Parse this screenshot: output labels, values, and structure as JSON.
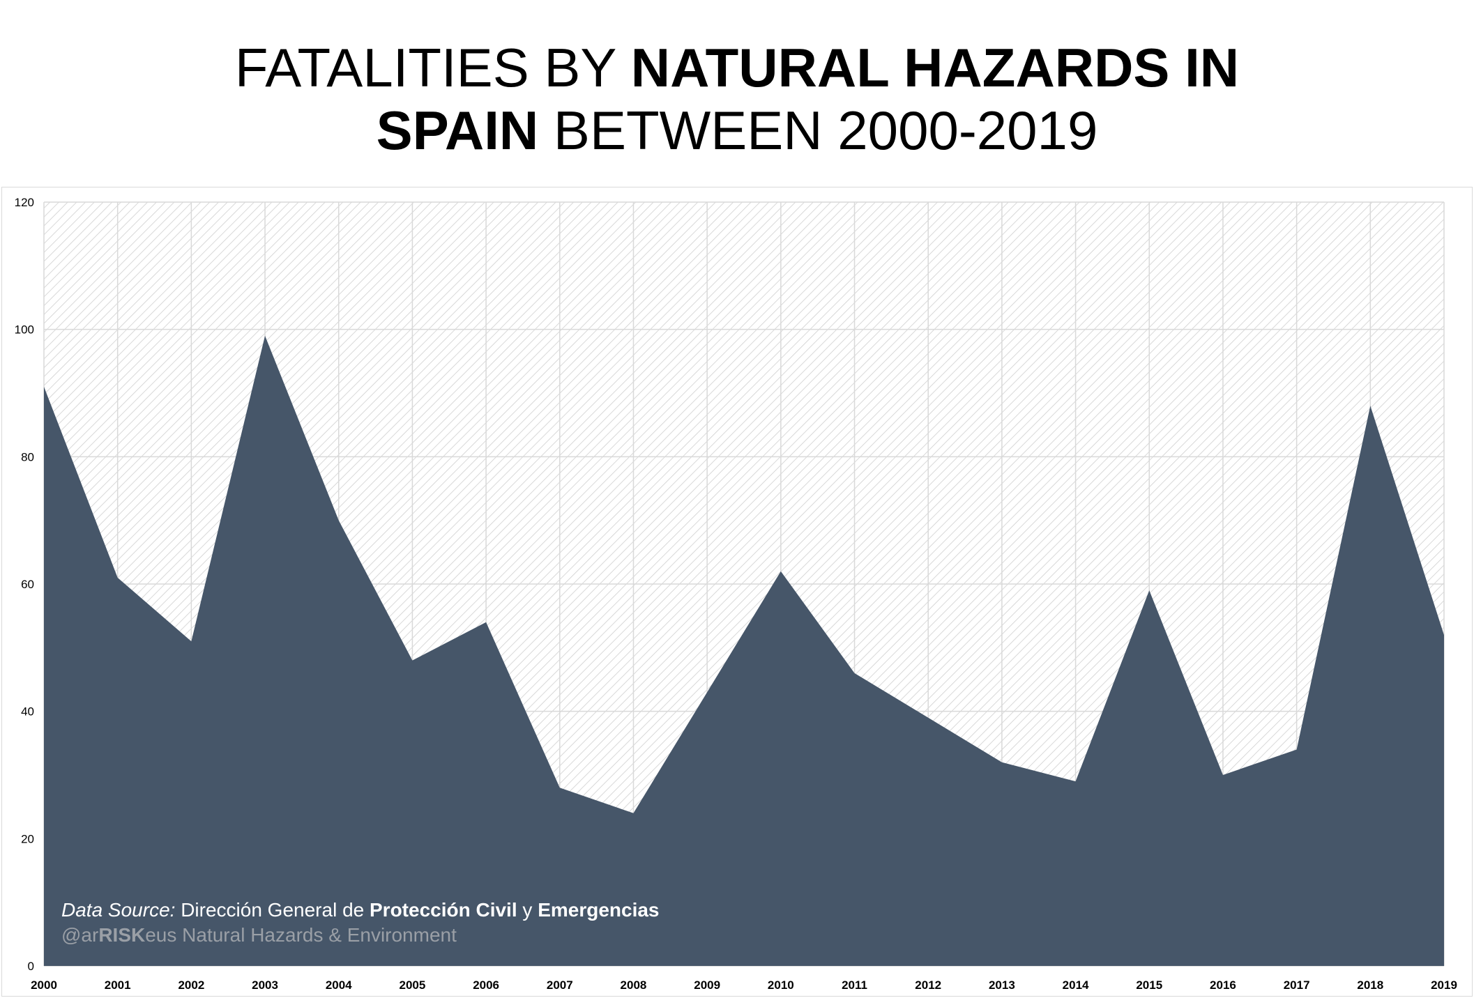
{
  "title": {
    "line1_normal": "FATALITIES BY ",
    "line1_bold": "NATURAL HAZARDS IN",
    "line2_bold": "SPAIN",
    "line2_normal": " BETWEEN 2000-2019"
  },
  "source": {
    "prefix_italic": "Data Source:",
    "part1": " Dirección General de ",
    "bold1": "Protección Civil",
    "part2": " y ",
    "bold2": "Emergencias"
  },
  "credit": {
    "prefix": "@ar",
    "bold": "RISK",
    "suffix": "eus Natural Hazards & Environment"
  },
  "colors": {
    "area_fill": "#465669",
    "grid": "#d9d9d9",
    "hatch": "#c8c8c8"
  },
  "chart_data": {
    "type": "area",
    "title": "FATALITIES BY NATURAL HAZARDS IN SPAIN BETWEEN 2000-2019",
    "x": [
      "2000",
      "2001",
      "2002",
      "2003",
      "2004",
      "2005",
      "2006",
      "2007",
      "2008",
      "2009",
      "2010",
      "2011",
      "2012",
      "2013",
      "2014",
      "2015",
      "2016",
      "2017",
      "2018",
      "2019"
    ],
    "values": [
      91,
      61,
      51,
      99,
      70,
      48,
      54,
      28,
      24,
      43,
      62,
      46,
      39,
      32,
      29,
      59,
      30,
      34,
      88,
      52
    ],
    "ylim": [
      0,
      120
    ],
    "yticks": [
      0,
      20,
      40,
      60,
      80,
      100,
      120
    ],
    "xlabel": "",
    "ylabel": "",
    "grid": true,
    "legend": "none"
  }
}
